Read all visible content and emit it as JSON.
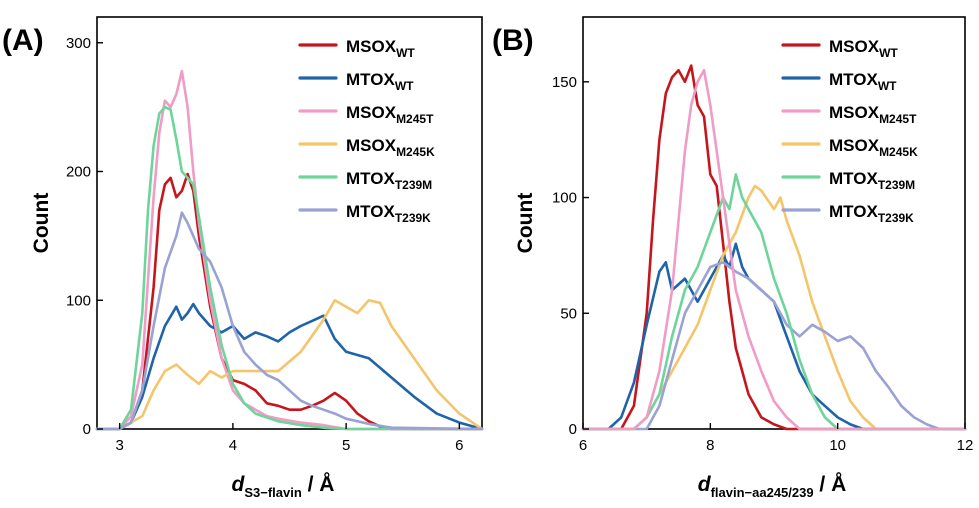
{
  "colors": {
    "MSOX_WT": "#c4161c",
    "MTOX_WT": "#1f63a8",
    "MSOX_M245T": "#ef9cc6",
    "MSOX_M245K": "#f4c56a",
    "MTOX_T239M": "#6dd59a",
    "MTOX_T239K": "#9aa2d4"
  },
  "chart_data": [
    {
      "type": "line",
      "panel_label": "(A)",
      "xlabel_main": "d",
      "xlabel_sub": "S3−flavin",
      "xlabel_unit": " / Å",
      "ylabel": "Count",
      "xlim": [
        2.8,
        6.2
      ],
      "ylim": [
        0,
        320
      ],
      "xticks": [
        3,
        4,
        5,
        6
      ],
      "yticks": [
        0,
        100,
        200,
        300
      ],
      "legend_position": "top-right",
      "series": [
        {
          "key": "MSOX_WT",
          "name_main": "MSOX",
          "name_sub": "WT",
          "x": [
            2.8,
            3.0,
            3.1,
            3.2,
            3.3,
            3.35,
            3.4,
            3.45,
            3.5,
            3.55,
            3.6,
            3.65,
            3.7,
            3.8,
            3.9,
            4.0,
            4.1,
            4.2,
            4.3,
            4.4,
            4.5,
            4.6,
            4.7,
            4.8,
            4.9,
            5.0,
            5.1,
            5.2,
            5.3,
            5.4,
            6.2
          ],
          "y": [
            0,
            0,
            5,
            30,
            110,
            170,
            190,
            195,
            180,
            185,
            198,
            185,
            150,
            95,
            55,
            38,
            35,
            30,
            20,
            18,
            15,
            15,
            18,
            22,
            28,
            22,
            12,
            6,
            2,
            0,
            0
          ]
        },
        {
          "key": "MTOX_WT",
          "name_main": "MTOX",
          "name_sub": "WT",
          "x": [
            2.8,
            3.0,
            3.1,
            3.2,
            3.3,
            3.4,
            3.5,
            3.55,
            3.6,
            3.65,
            3.7,
            3.8,
            3.9,
            4.0,
            4.1,
            4.2,
            4.3,
            4.4,
            4.5,
            4.6,
            4.7,
            4.8,
            4.9,
            5.0,
            5.2,
            5.4,
            5.6,
            5.8,
            6.0,
            6.2
          ],
          "y": [
            0,
            0,
            5,
            25,
            55,
            80,
            95,
            85,
            90,
            97,
            90,
            80,
            75,
            80,
            70,
            75,
            72,
            68,
            75,
            80,
            84,
            88,
            70,
            60,
            55,
            40,
            25,
            12,
            5,
            0
          ]
        },
        {
          "key": "MSOX_M245T",
          "name_main": "MSOX",
          "name_sub": "M245T",
          "x": [
            2.8,
            3.0,
            3.1,
            3.2,
            3.3,
            3.35,
            3.4,
            3.45,
            3.5,
            3.55,
            3.6,
            3.65,
            3.7,
            3.8,
            3.9,
            4.0,
            4.1,
            4.2,
            4.3,
            4.4,
            4.6,
            4.8,
            5.0,
            6.2
          ],
          "y": [
            0,
            0,
            10,
            50,
            180,
            230,
            255,
            250,
            260,
            278,
            250,
            200,
            160,
            100,
            55,
            30,
            20,
            15,
            10,
            8,
            5,
            3,
            0,
            0
          ]
        },
        {
          "key": "MSOX_M245K",
          "name_main": "MSOX",
          "name_sub": "M245K",
          "x": [
            2.8,
            3.0,
            3.2,
            3.3,
            3.4,
            3.5,
            3.6,
            3.7,
            3.8,
            3.9,
            4.0,
            4.2,
            4.4,
            4.6,
            4.8,
            4.9,
            5.0,
            5.1,
            5.2,
            5.3,
            5.4,
            5.6,
            5.8,
            6.0,
            6.2
          ],
          "y": [
            0,
            0,
            10,
            30,
            45,
            50,
            42,
            35,
            45,
            40,
            45,
            45,
            45,
            60,
            85,
            100,
            95,
            90,
            100,
            98,
            80,
            55,
            30,
            12,
            0
          ]
        },
        {
          "key": "MTOX_T239M",
          "name_main": "MTOX",
          "name_sub": "T239M",
          "x": [
            2.8,
            3.0,
            3.1,
            3.2,
            3.25,
            3.3,
            3.35,
            3.4,
            3.45,
            3.5,
            3.55,
            3.6,
            3.65,
            3.7,
            3.8,
            3.9,
            4.0,
            4.1,
            4.2,
            4.4,
            4.6,
            4.8,
            5.0,
            6.2
          ],
          "y": [
            0,
            0,
            15,
            90,
            170,
            220,
            245,
            250,
            248,
            225,
            200,
            195,
            190,
            165,
            110,
            65,
            35,
            20,
            12,
            6,
            3,
            1,
            0,
            0
          ]
        },
        {
          "key": "MTOX_T239K",
          "name_main": "MTOX",
          "name_sub": "T239K",
          "x": [
            2.8,
            3.0,
            3.1,
            3.2,
            3.3,
            3.4,
            3.5,
            3.55,
            3.6,
            3.7,
            3.8,
            3.9,
            4.0,
            4.1,
            4.2,
            4.3,
            4.4,
            4.5,
            4.6,
            4.7,
            4.8,
            4.9,
            5.0,
            5.2,
            5.4,
            6.2
          ],
          "y": [
            0,
            0,
            5,
            30,
            80,
            125,
            150,
            168,
            160,
            140,
            130,
            110,
            80,
            60,
            50,
            42,
            38,
            30,
            22,
            18,
            15,
            12,
            8,
            4,
            1,
            0
          ]
        }
      ]
    },
    {
      "type": "line",
      "panel_label": "(B)",
      "xlabel_main": "d",
      "xlabel_sub": "flavin−aa245/239",
      "xlabel_unit": " / Å",
      "ylabel": "Count",
      "xlim": [
        6,
        12
      ],
      "ylim": [
        0,
        178
      ],
      "xticks": [
        6,
        8,
        10,
        12
      ],
      "yticks": [
        0,
        50,
        100,
        150
      ],
      "legend_position": "top-right",
      "series": [
        {
          "key": "MSOX_WT",
          "name_main": "MSOX",
          "name_sub": "WT",
          "x": [
            6,
            6.6,
            6.8,
            7.0,
            7.1,
            7.2,
            7.3,
            7.4,
            7.5,
            7.6,
            7.7,
            7.8,
            7.9,
            8.0,
            8.1,
            8.2,
            8.3,
            8.4,
            8.5,
            8.6,
            8.8,
            9.0,
            9.2,
            12
          ],
          "y": [
            0,
            0,
            10,
            50,
            90,
            125,
            145,
            152,
            155,
            150,
            157,
            140,
            135,
            110,
            105,
            80,
            55,
            35,
            25,
            15,
            5,
            2,
            0,
            0
          ]
        },
        {
          "key": "MTOX_WT",
          "name_main": "MTOX",
          "name_sub": "WT",
          "x": [
            6,
            6.4,
            6.6,
            6.8,
            7.0,
            7.2,
            7.3,
            7.4,
            7.6,
            7.8,
            8.0,
            8.2,
            8.3,
            8.4,
            8.5,
            8.6,
            8.8,
            9.0,
            9.2,
            9.4,
            9.6,
            9.8,
            10.0,
            10.2,
            10.4,
            12
          ],
          "y": [
            0,
            0,
            5,
            20,
            45,
            68,
            72,
            60,
            65,
            55,
            65,
            75,
            70,
            80,
            70,
            65,
            60,
            55,
            40,
            25,
            15,
            10,
            5,
            2,
            0,
            0
          ]
        },
        {
          "key": "MSOX_M245K",
          "name_main": "MSOX",
          "name_sub": "M245K",
          "x": [
            6,
            6.8,
            7.0,
            7.2,
            7.4,
            7.6,
            7.8,
            8.0,
            8.2,
            8.4,
            8.6,
            8.7,
            8.8,
            9.0,
            9.1,
            9.2,
            9.4,
            9.6,
            9.8,
            10.0,
            10.2,
            10.4,
            10.6,
            12
          ],
          "y": [
            0,
            0,
            5,
            15,
            25,
            35,
            45,
            60,
            75,
            85,
            100,
            105,
            103,
            95,
            100,
            90,
            75,
            55,
            40,
            25,
            12,
            5,
            0,
            0
          ]
        },
        {
          "key": "MTOX_T239K",
          "name_main": "MTOX",
          "name_sub": "T239K",
          "x": [
            6,
            7.0,
            7.2,
            7.4,
            7.6,
            7.8,
            8.0,
            8.2,
            8.4,
            8.6,
            8.8,
            9.0,
            9.2,
            9.4,
            9.6,
            9.8,
            10.0,
            10.2,
            10.4,
            10.6,
            10.8,
            11.0,
            11.2,
            11.4,
            11.6,
            12
          ],
          "y": [
            0,
            0,
            10,
            30,
            50,
            60,
            70,
            72,
            68,
            65,
            60,
            55,
            45,
            40,
            45,
            42,
            38,
            40,
            35,
            25,
            18,
            10,
            5,
            2,
            0,
            0
          ]
        },
        {
          "key": "MTOX_T239M",
          "name_main": "MTOX",
          "name_sub": "T239M",
          "x": [
            6,
            6.8,
            7.0,
            7.2,
            7.4,
            7.6,
            7.8,
            8.0,
            8.2,
            8.3,
            8.4,
            8.5,
            8.6,
            8.8,
            9.0,
            9.2,
            9.4,
            9.6,
            9.8,
            10.0,
            12
          ],
          "y": [
            0,
            0,
            5,
            15,
            40,
            60,
            70,
            85,
            100,
            95,
            110,
            100,
            95,
            85,
            65,
            50,
            30,
            15,
            5,
            0,
            0
          ]
        },
        {
          "key": "MSOX_M245T",
          "name_main": "MSOX",
          "name_sub": "M245T",
          "x": [
            6,
            6.8,
            7.0,
            7.2,
            7.4,
            7.5,
            7.6,
            7.7,
            7.8,
            7.9,
            8.0,
            8.1,
            8.2,
            8.3,
            8.4,
            8.6,
            8.8,
            9.0,
            9.2,
            9.4,
            12
          ],
          "y": [
            0,
            0,
            5,
            25,
            60,
            90,
            120,
            140,
            150,
            155,
            140,
            120,
            100,
            80,
            60,
            40,
            25,
            12,
            5,
            0,
            0
          ]
        }
      ]
    }
  ]
}
